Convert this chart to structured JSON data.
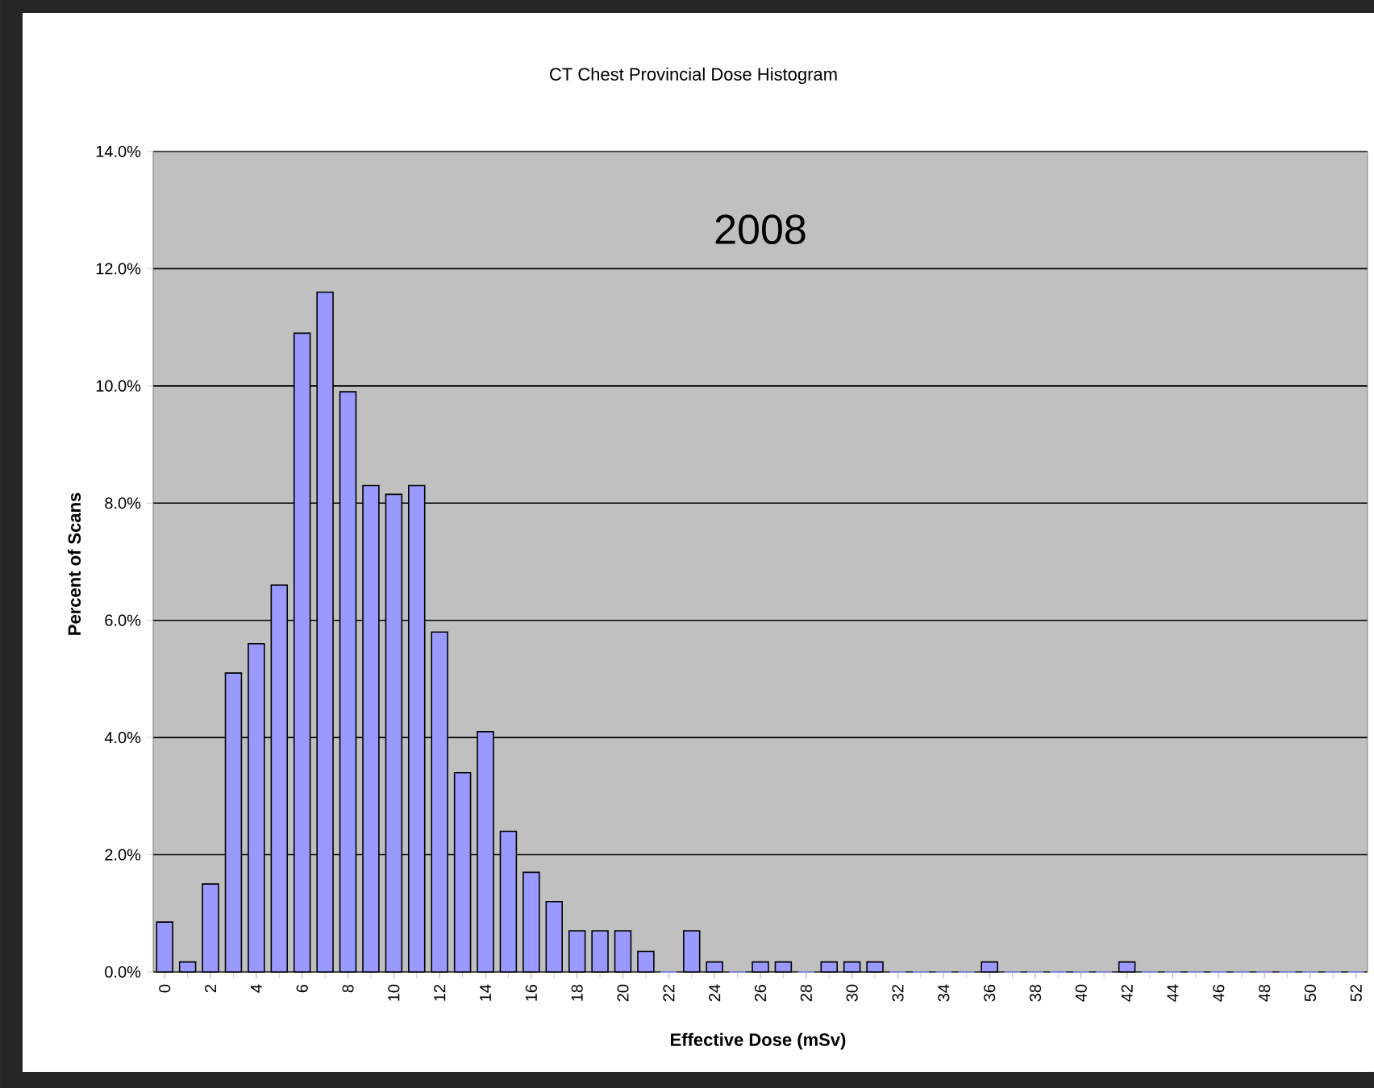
{
  "chart_data": {
    "type": "bar",
    "title": "CT Chest Provincial Dose Histogram",
    "xlabel": "Effective Dose (mSv)",
    "ylabel": "Percent of Scans",
    "annotations": [
      "2008"
    ],
    "categories": [
      "0",
      null,
      "2",
      null,
      "4",
      null,
      "6",
      null,
      "8",
      null,
      "10",
      null,
      "12",
      null,
      "14",
      null,
      "16",
      null,
      "18",
      null,
      "20",
      null,
      "22",
      null,
      "24",
      null,
      "26",
      null,
      "28",
      null,
      "30",
      null,
      "32",
      null,
      "34",
      null,
      "36",
      null,
      "38",
      null,
      "40",
      null,
      "42",
      null,
      "44",
      null,
      "46",
      null,
      "48",
      null,
      "50",
      null,
      "52"
    ],
    "values": [
      0.85,
      0.17,
      1.5,
      5.1,
      5.6,
      6.6,
      10.9,
      11.6,
      9.9,
      8.3,
      8.15,
      8.3,
      5.8,
      3.4,
      4.1,
      2.4,
      1.7,
      1.2,
      0.7,
      0.7,
      0.7,
      0.35,
      0,
      0.7,
      0.17,
      0,
      0.17,
      0.17,
      0,
      0.17,
      0.17,
      0.17,
      0,
      0,
      0,
      0,
      0.17,
      0,
      0,
      0,
      0,
      0,
      0.17,
      0,
      0,
      0,
      0,
      0,
      0,
      0,
      0,
      0,
      0
    ],
    "color": "#9999ff",
    "ylim": [
      0,
      14
    ],
    "yticks": [
      {
        "value": 0,
        "label": "0.0%"
      },
      {
        "value": 2,
        "label": "2.0%"
      },
      {
        "value": 4,
        "label": "4.0%"
      },
      {
        "value": 6,
        "label": "6.0%"
      },
      {
        "value": 8,
        "label": "8.0%"
      },
      {
        "value": 10,
        "label": "10.0%"
      },
      {
        "value": 12,
        "label": "12.0%"
      },
      {
        "value": 14,
        "label": "14.0%"
      }
    ],
    "grid": "y"
  }
}
